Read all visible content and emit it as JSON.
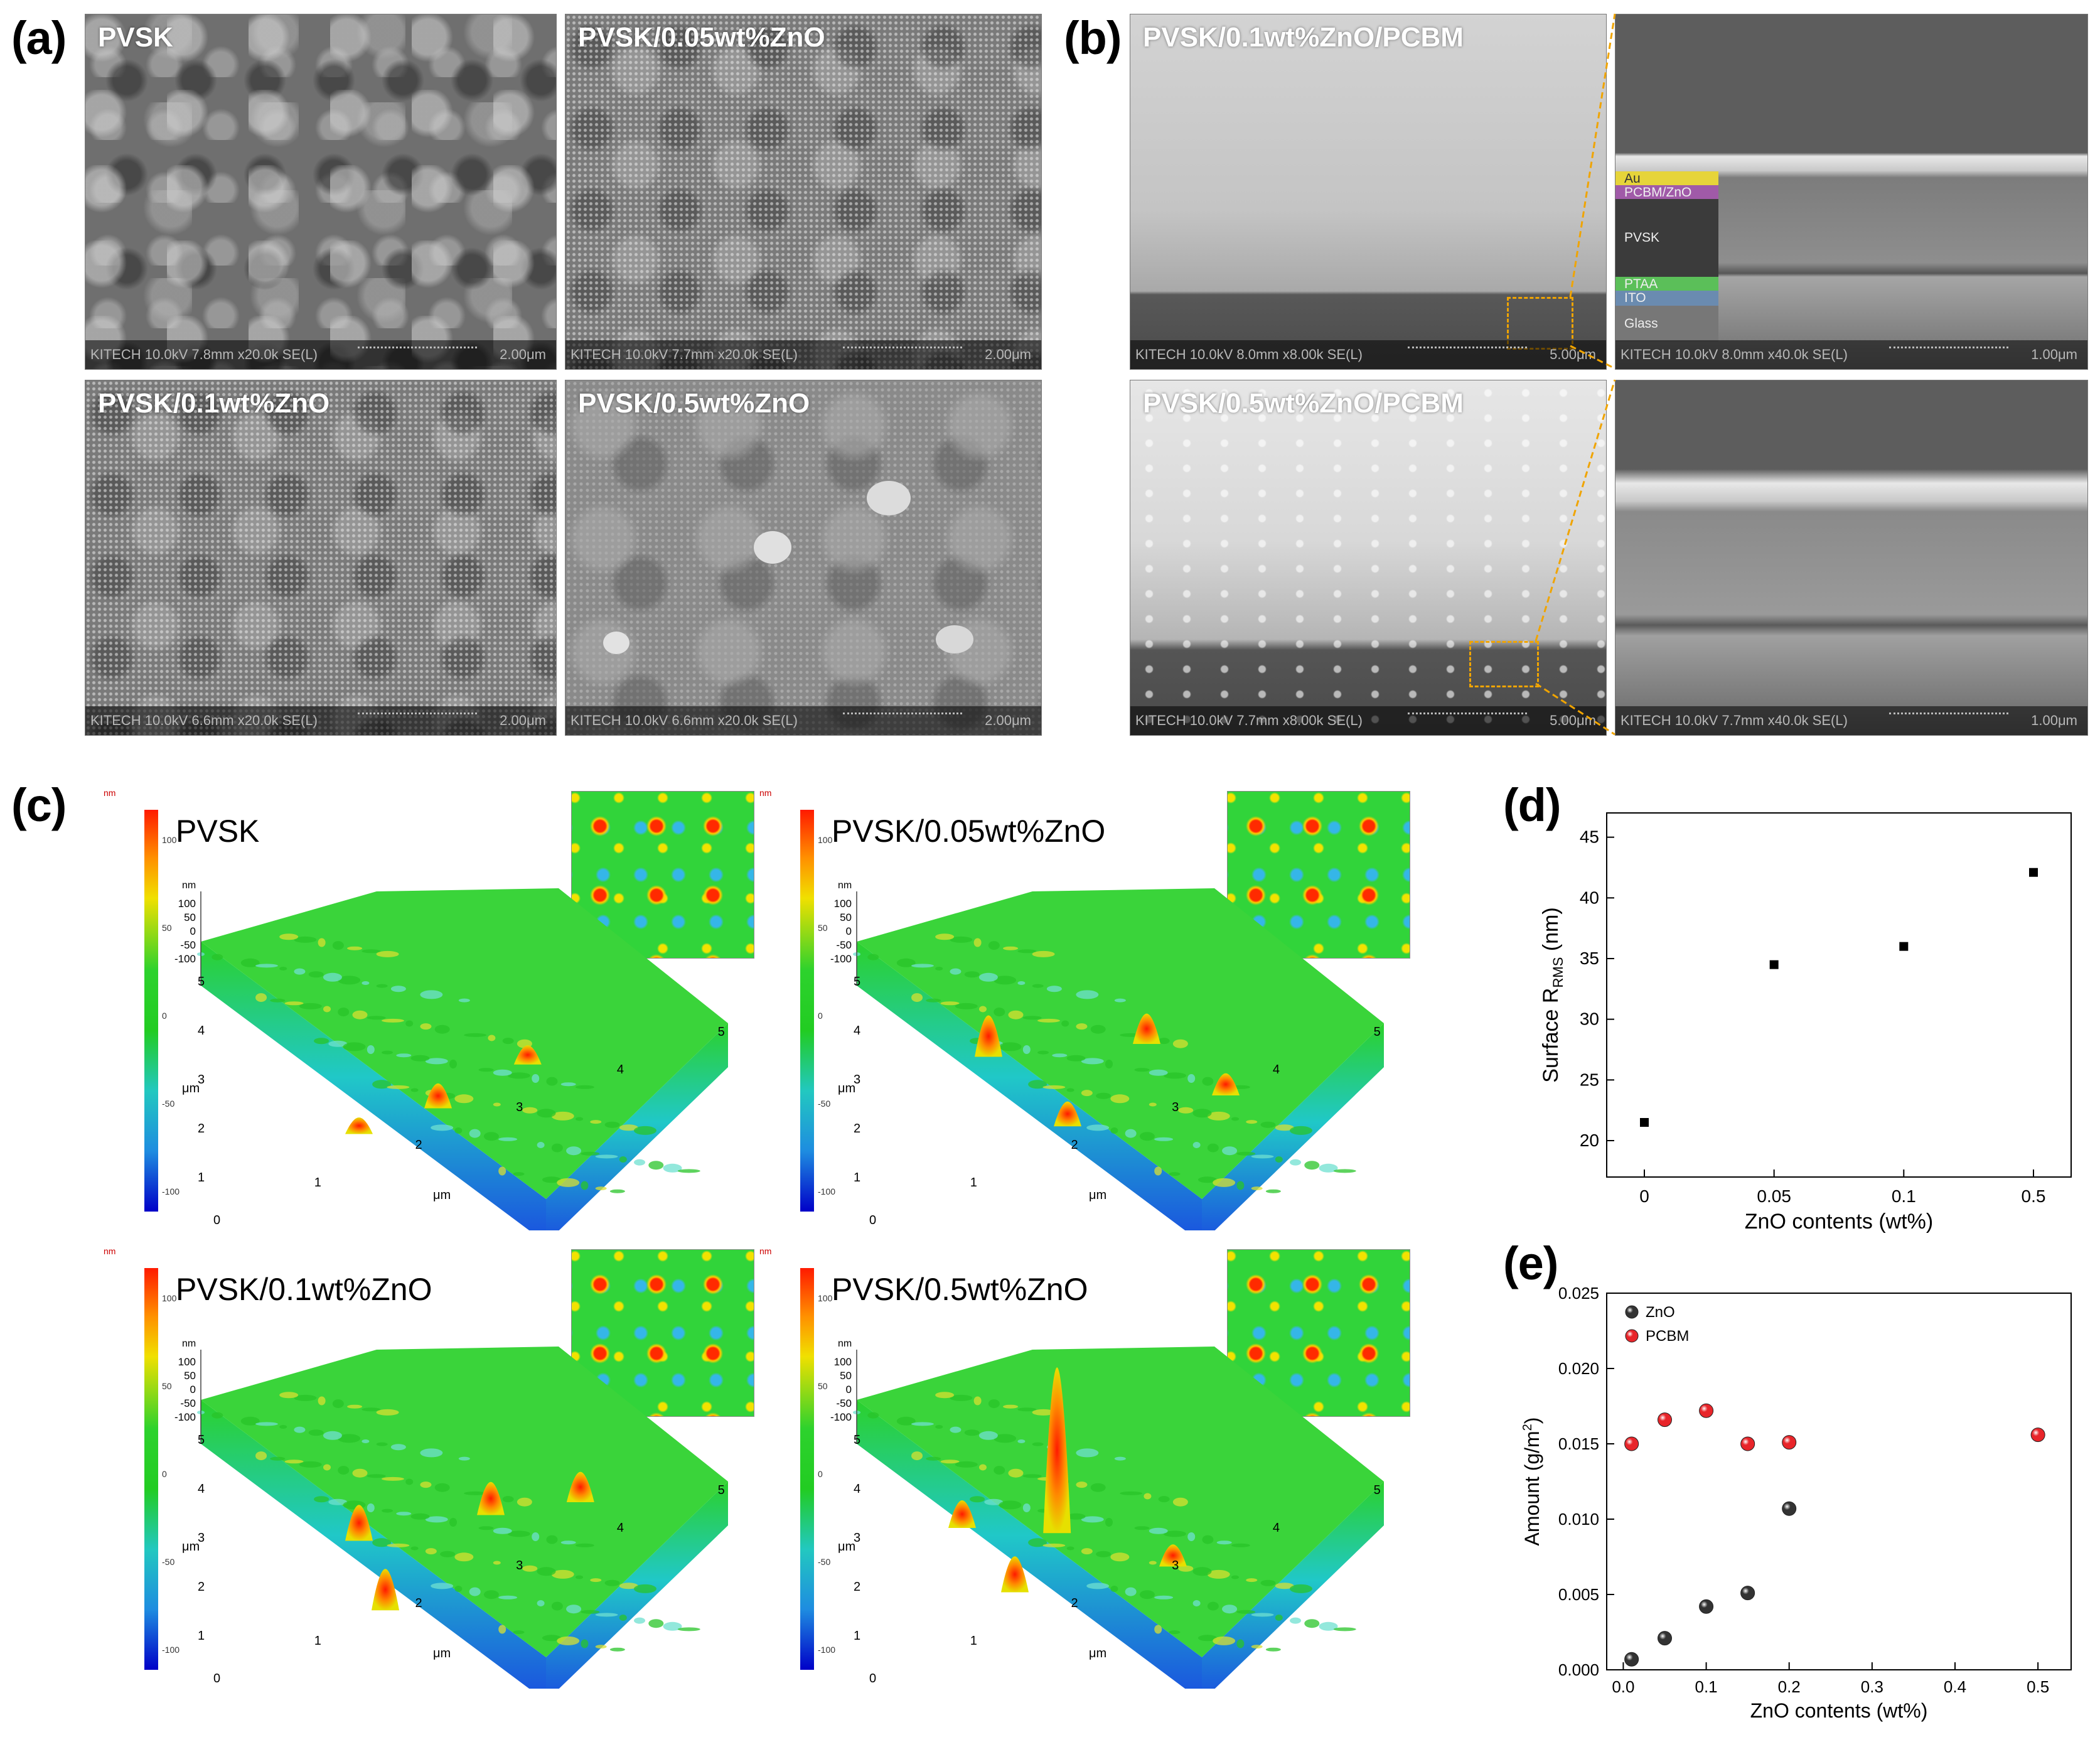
{
  "figure": {
    "panels": {
      "a": {
        "letter": "(a)",
        "images": [
          {
            "label": "PVSK",
            "footer": "KITECH 10.0kV 7.8mm x20.0k SE(L)",
            "scale": "2.00μm"
          },
          {
            "label": "PVSK/0.05wt%ZnO",
            "footer": "KITECH 10.0kV 7.7mm x20.0k SE(L)",
            "scale": "2.00μm"
          },
          {
            "label": "PVSK/0.1wt%ZnO",
            "footer": "KITECH 10.0kV 6.6mm x20.0k SE(L)",
            "scale": "2.00μm"
          },
          {
            "label": "PVSK/0.5wt%ZnO",
            "footer": "KITECH 10.0kV 6.6mm x20.0k SE(L)",
            "scale": "2.00μm"
          }
        ]
      },
      "b": {
        "letter": "(b)",
        "images": [
          {
            "label": "PVSK/0.1wt%ZnO/PCBM",
            "footer": "KITECH 10.0kV 8.0mm x8.00k SE(L)",
            "scale": "5.00μm"
          },
          {
            "label": "",
            "footer": "KITECH 10.0kV 8.0mm x40.0k SE(L)",
            "scale": "1.00μm"
          },
          {
            "label": "PVSK/0.5wt%ZnO/PCBM",
            "footer": "KITECH 10.0kV 7.7mm x8.00k SE(L)",
            "scale": "5.00μm"
          },
          {
            "label": "",
            "footer": "KITECH 10.0kV 7.7mm x40.0k SE(L)",
            "scale": "1.00μm"
          }
        ],
        "layers": [
          "Au",
          "PCBM/ZnO",
          "PVSK",
          "PTAA",
          "ITO",
          "Glass"
        ]
      },
      "c": {
        "letter": "(c)",
        "maps": [
          {
            "label": "PVSK"
          },
          {
            "label": "PVSK/0.05wt%ZnO"
          },
          {
            "label": "PVSK/0.1wt%ZnO"
          },
          {
            "label": "PVSK/0.5wt%ZnO"
          }
        ],
        "colorbar_unit": "nm",
        "colorbar_ticks": [
          "100",
          "50",
          "0",
          "-50",
          "-100"
        ],
        "height_ticks": [
          "100",
          "50",
          "0",
          "-50",
          "-100"
        ],
        "axis_unit": "μm",
        "x_ticks": [
          "0",
          "1",
          "2",
          "3",
          "4",
          "5"
        ],
        "y_ticks": [
          "0",
          "1",
          "2",
          "3",
          "4",
          "5"
        ],
        "colors": {
          "high": "#ff1a00",
          "mid": "#22cc22",
          "low": "#0000c8"
        }
      },
      "d": {
        "letter": "(d)"
      },
      "e": {
        "letter": "(e)"
      }
    }
  },
  "chart_data": [
    {
      "id": "d",
      "type": "scatter",
      "categories": [
        "0",
        "0.05",
        "0.1",
        "0.5"
      ],
      "values": [
        21.5,
        34.5,
        36.0,
        42.1
      ],
      "xlabel": "ZnO contents (wt%)",
      "ylabel_main": "Surface R",
      "ylabel_sub": "RMS",
      "ylabel_unit": " (nm)",
      "ylim": [
        17,
        47
      ],
      "yticks": [
        20,
        25,
        30,
        35,
        40,
        45
      ],
      "color": "#000000"
    },
    {
      "id": "e",
      "type": "scatter",
      "x": [
        0.01,
        0.05,
        0.1,
        0.15,
        0.2,
        0.5
      ],
      "series": [
        {
          "name": "ZnO",
          "color": "#333333",
          "x": [
            0.01,
            0.05,
            0.1,
            0.15,
            0.2
          ],
          "values": [
            0.0007,
            0.0021,
            0.0042,
            0.0051,
            0.0107
          ]
        },
        {
          "name": "PCBM",
          "color": "#e8252a",
          "x": [
            0.01,
            0.05,
            0.1,
            0.15,
            0.2,
            0.5
          ],
          "values": [
            0.015,
            0.0166,
            0.0172,
            0.015,
            0.0151,
            0.0156
          ]
        }
      ],
      "xlabel": "ZnO contents (wt%)",
      "ylabel_main": "Amount (g/m",
      "ylabel_sup": "2",
      "ylabel_end": ")",
      "xlim": [
        -0.02,
        0.54
      ],
      "xticks": [
        "0.0",
        "0.1",
        "0.2",
        "0.3",
        "0.4",
        "0.5"
      ],
      "ylim": [
        0,
        0.025
      ],
      "yticks": [
        "0.000",
        "0.005",
        "0.010",
        "0.015",
        "0.020",
        "0.025"
      ],
      "legend_position": "top-left"
    }
  ]
}
